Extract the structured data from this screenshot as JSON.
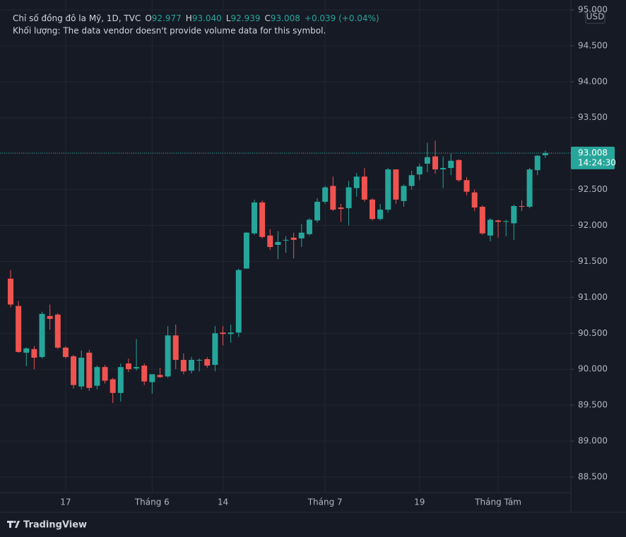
{
  "header": {
    "symbol": "Chỉ số đồng đô la Mỹ, 1D, TVC",
    "ohlc": [
      {
        "key": "O",
        "value": "92.977"
      },
      {
        "key": "H",
        "value": "93.040"
      },
      {
        "key": "L",
        "value": "92.939"
      },
      {
        "key": "C",
        "value": "93.008"
      }
    ],
    "change": "+0.039 (+0.04%)",
    "volume_note": "Khối lượng: The data vendor doesn't provide volume data for this symbol."
  },
  "currency": "USD",
  "brand": "TradingView",
  "chart_data": {
    "type": "candlestick",
    "x": [
      null,
      null,
      null,
      null,
      null,
      null,
      null,
      "17",
      null,
      null,
      null,
      null,
      null,
      null,
      null,
      null,
      null,
      null,
      "Tháng 6",
      null,
      null,
      null,
      null,
      null,
      null,
      null,
      null,
      "14",
      null,
      null,
      null,
      null,
      null,
      null,
      null,
      null,
      null,
      null,
      null,
      null,
      "Tháng 7",
      null,
      null,
      null,
      null,
      null,
      null,
      null,
      null,
      null,
      null,
      null,
      "19",
      null,
      null,
      null,
      null,
      null,
      null,
      null,
      null,
      null,
      "Tháng Tám",
      null,
      null,
      null,
      null,
      null,
      null
    ],
    "open": [
      91.26,
      90.88,
      90.23,
      90.28,
      90.17,
      90.74,
      90.76,
      90.3,
      90.18,
      89.76,
      90.23,
      89.77,
      90.03,
      89.86,
      89.67,
      90.08,
      90.01,
      90.05,
      89.82,
      89.92,
      89.9,
      90.47,
      90.13,
      89.98,
      90.12,
      90.14,
      90.06,
      90.51,
      90.49,
      90.51,
      91.4,
      91.89,
      92.32,
      91.86,
      91.73,
      91.8,
      91.83,
      91.82,
      91.88,
      92.07,
      92.33,
      92.55,
      92.25,
      92.24,
      92.52,
      92.68,
      92.36,
      92.09,
      92.22,
      92.78,
      92.34,
      92.55,
      92.71,
      92.86,
      92.96,
      92.78,
      92.8,
      92.91,
      92.63,
      92.46,
      92.26,
      91.86,
      92.07,
      92.05,
      92.03,
      92.27,
      92.26,
      92.77,
      92.977
    ],
    "high": [
      91.38,
      90.95,
      90.3,
      90.32,
      90.8,
      90.9,
      90.78,
      90.32,
      90.2,
      90.26,
      90.27,
      90.05,
      90.06,
      89.88,
      90.08,
      90.15,
      90.42,
      90.08,
      89.9,
      90.02,
      90.6,
      90.62,
      90.22,
      90.17,
      90.15,
      90.17,
      90.6,
      90.6,
      90.62,
      91.4,
      91.91,
      92.36,
      92.35,
      91.95,
      91.92,
      91.85,
      91.9,
      92.02,
      92.1,
      92.38,
      92.55,
      92.68,
      92.3,
      92.62,
      92.73,
      92.8,
      92.38,
      92.3,
      92.8,
      92.78,
      92.57,
      92.76,
      92.86,
      93.15,
      93.18,
      92.96,
      93.0,
      92.92,
      92.67,
      92.5,
      92.28,
      92.1,
      92.08,
      92.08,
      92.29,
      92.35,
      92.8,
      92.98,
      93.04
    ],
    "low": [
      90.86,
      90.23,
      90.04,
      90.0,
      90.15,
      90.55,
      90.28,
      90.15,
      89.73,
      89.72,
      89.7,
      89.72,
      89.8,
      89.53,
      89.55,
      89.96,
      89.98,
      89.78,
      89.66,
      89.88,
      89.88,
      90.0,
      89.93,
      89.94,
      89.97,
      90.02,
      89.97,
      90.33,
      90.37,
      90.45,
      91.4,
      91.87,
      91.82,
      91.66,
      91.53,
      91.62,
      91.54,
      91.7,
      91.86,
      92.04,
      92.3,
      92.2,
      92.05,
      92.0,
      92.4,
      92.33,
      92.07,
      92.07,
      92.18,
      92.3,
      92.26,
      92.5,
      92.63,
      92.74,
      92.72,
      92.52,
      92.7,
      92.61,
      92.42,
      92.2,
      91.87,
      91.78,
      91.83,
      91.85,
      91.8,
      92.2,
      92.24,
      92.7,
      92.939
    ],
    "close": [
      90.9,
      90.24,
      90.29,
      90.16,
      90.77,
      90.7,
      90.3,
      90.17,
      89.78,
      90.16,
      89.74,
      90.03,
      89.84,
      89.67,
      90.03,
      90.0,
      90.03,
      89.83,
      89.93,
      89.89,
      90.47,
      90.13,
      89.97,
      90.13,
      90.13,
      90.05,
      90.5,
      90.49,
      90.51,
      91.38,
      91.9,
      92.32,
      91.84,
      91.7,
      91.77,
      91.8,
      91.8,
      91.9,
      92.08,
      92.33,
      92.53,
      92.22,
      92.23,
      92.53,
      92.68,
      92.36,
      92.09,
      92.22,
      92.78,
      92.36,
      92.55,
      92.7,
      92.82,
      92.95,
      92.78,
      92.8,
      92.9,
      92.63,
      92.47,
      92.25,
      91.89,
      92.08,
      92.05,
      92.06,
      92.27,
      92.26,
      92.78,
      92.97,
      93.008
    ],
    "up_color": "#26a69a",
    "down_color": "#ef5350",
    "ylim": [
      88.284,
      95.137
    ],
    "yticks": [
      {
        "value": 88.5,
        "label": "88.500"
      },
      {
        "value": 89,
        "label": "89.000"
      },
      {
        "value": 89.5,
        "label": "89.500"
      },
      {
        "value": 90,
        "label": "90.000"
      },
      {
        "value": 90.5,
        "label": "90.500"
      },
      {
        "value": 91,
        "label": "91.000"
      },
      {
        "value": 91.5,
        "label": "91.500"
      },
      {
        "value": 92,
        "label": "92.000"
      },
      {
        "value": 92.5,
        "label": "92.500"
      },
      {
        "value": 93,
        "label": "93.000"
      },
      {
        "value": 93.5,
        "label": "93.500"
      },
      {
        "value": 94,
        "label": "94.000"
      },
      {
        "value": 94.5,
        "label": "94.500"
      },
      {
        "value": 95,
        "label": "95.000"
      }
    ],
    "grid": true,
    "last_price": {
      "value": 93.008,
      "label": "93.008"
    },
    "countdown": "14:24:30"
  }
}
